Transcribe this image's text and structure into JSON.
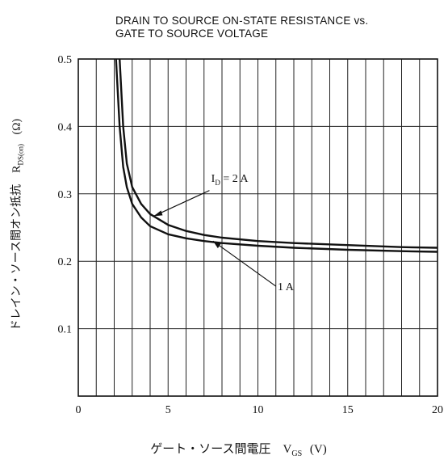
{
  "chart_data": {
    "type": "line",
    "title_lines": [
      "DRAIN TO SOURCE ON-STATE RESISTANCE vs.",
      "GATE TO SOURCE VOLTAGE"
    ],
    "xlabel": "ゲート・ソース間電圧　V",
    "xlabel_sub": "GS",
    "xlabel_unit": "(V)",
    "ylabel": "ドレイン・ソース間オン抵抗　R",
    "ylabel_sub": "DS(on)",
    "ylabel_unit": "(Ω)",
    "xlim": [
      0,
      20
    ],
    "ylim": [
      0,
      0.5
    ],
    "x_ticks": [
      "0",
      "5",
      "10",
      "15",
      "20"
    ],
    "y_ticks": [
      "0.1",
      "0.2",
      "0.3",
      "0.4",
      "0.5"
    ],
    "x_minor_step": 1,
    "y_grid_step": 0.1,
    "grid": true,
    "series": [
      {
        "name_prefix": "I",
        "name_sub": "D",
        "name_suffix": " = 2 A",
        "x": [
          2.3,
          2.5,
          2.7,
          3.0,
          3.5,
          4.0,
          5.0,
          6.0,
          7.0,
          8.0,
          10.0,
          12.0,
          15.0,
          18.0,
          20.0
        ],
        "y": [
          0.5,
          0.4,
          0.345,
          0.31,
          0.285,
          0.27,
          0.254,
          0.245,
          0.239,
          0.235,
          0.23,
          0.227,
          0.224,
          0.221,
          0.22
        ]
      },
      {
        "name_prefix": "",
        "name_sub": "",
        "name_suffix": "1 A",
        "x": [
          2.1,
          2.3,
          2.5,
          2.7,
          3.0,
          3.5,
          4.0,
          5.0,
          6.0,
          7.0,
          8.0,
          10.0,
          12.0,
          15.0,
          18.0,
          20.0
        ],
        "y": [
          0.5,
          0.4,
          0.34,
          0.31,
          0.285,
          0.265,
          0.252,
          0.24,
          0.234,
          0.23,
          0.227,
          0.223,
          0.22,
          0.217,
          0.215,
          0.214
        ]
      }
    ]
  }
}
